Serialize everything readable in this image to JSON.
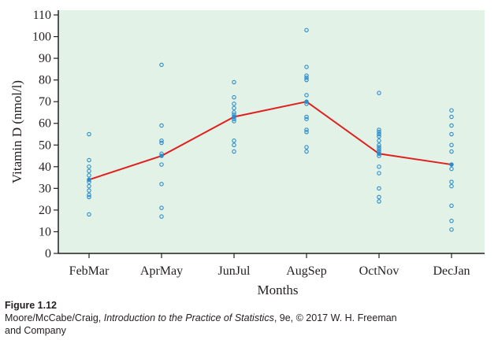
{
  "chart_data": {
    "type": "scatter",
    "xlabel": "Months",
    "ylabel": "Vitamin D (nmol/l)",
    "ylim": [
      0,
      110
    ],
    "yticks": [
      0,
      10,
      20,
      30,
      40,
      50,
      60,
      70,
      80,
      90,
      100,
      110
    ],
    "categories": [
      "FebMar",
      "AprMay",
      "JunJul",
      "AugSep",
      "OctNov",
      "DecJan"
    ],
    "grid": false,
    "colors": {
      "background": "#e3f2e6",
      "points": "#2a8ccc",
      "mean_line": "#e0201f",
      "axis": "#231f20"
    },
    "points": [
      [
        18,
        26,
        27,
        29,
        31,
        33,
        34,
        36,
        38,
        40,
        43,
        55
      ],
      [
        17,
        21,
        32,
        41,
        45,
        46,
        51,
        52,
        59,
        87
      ],
      [
        47,
        50,
        52,
        61,
        62,
        63,
        64,
        65,
        67,
        69,
        72,
        79
      ],
      [
        47,
        49,
        56,
        57,
        62,
        63,
        69,
        70,
        73,
        80,
        81,
        82,
        86,
        103
      ],
      [
        24,
        26,
        30,
        37,
        40,
        45,
        46,
        47,
        48,
        49,
        50,
        52,
        54,
        55,
        56,
        57,
        74
      ],
      [
        11,
        15,
        22,
        31,
        33,
        39,
        41,
        47,
        50,
        55,
        59,
        63,
        66
      ]
    ],
    "means": [
      34,
      45,
      63,
      70,
      46,
      41
    ]
  },
  "caption": {
    "figure_label": "Figure 1.12",
    "credit_authors": "Moore/McCabe/Craig, ",
    "credit_title": "Introduction to the Practice of Statistics",
    "credit_rest": ", 9e, © 2017 W. H. Freeman",
    "credit_line2": "and Company"
  }
}
